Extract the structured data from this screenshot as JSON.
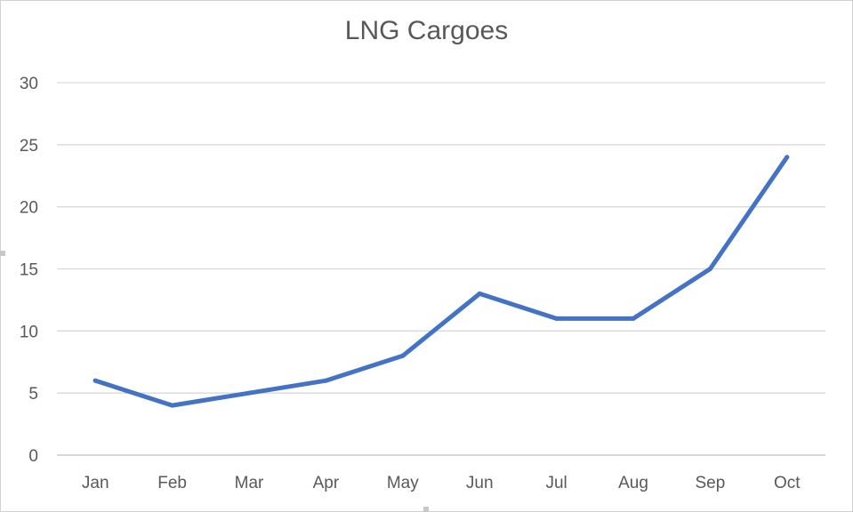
{
  "chart_data": {
    "type": "line",
    "title": "LNG Cargoes",
    "xlabel": "",
    "ylabel": "",
    "categories": [
      "Jan",
      "Feb",
      "Mar",
      "Apr",
      "May",
      "Jun",
      "Jul",
      "Aug",
      "Sep",
      "Oct"
    ],
    "series": [
      {
        "values": [
          6,
          4,
          5,
          6,
          8,
          13,
          11,
          11,
          15,
          24
        ],
        "color": "#4472c4"
      }
    ],
    "ylim": [
      0,
      30
    ],
    "yticks": [
      "0",
      "5",
      "10",
      "15",
      "20",
      "25",
      "30"
    ],
    "grid": true,
    "legend": "none"
  }
}
